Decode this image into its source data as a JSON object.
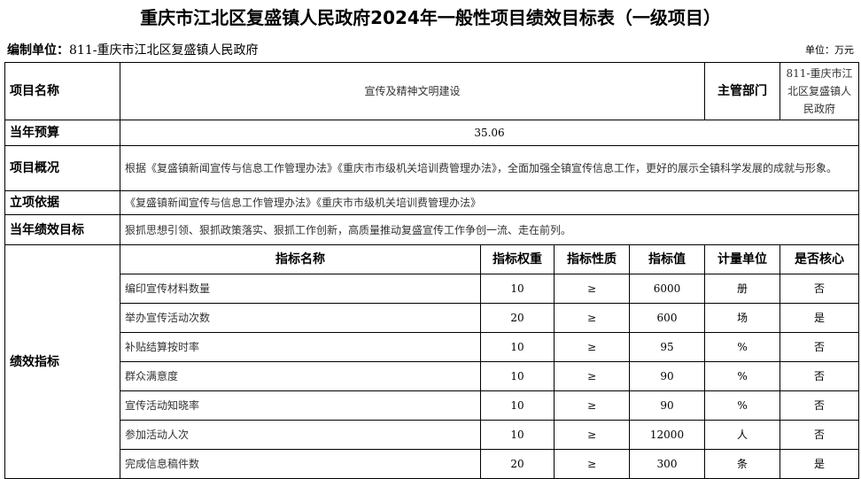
{
  "title": "重庆市江北区复盛镇人民政府2024年一般性项目绩效目标表（一级项目）",
  "org_label": "编制单位：",
  "org_value": "811-重庆市江北区复盛镇人民政府",
  "unit": "单位：万元",
  "rows": {
    "name_label": "项目名称",
    "name_value": "宣传及精神文明建设",
    "dept_label": "主管部门",
    "dept_value": "811-重庆市江北区复盛镇人民政府",
    "budget_label": "当年预算",
    "budget_value": "35.06",
    "overview_label": "项目概况",
    "overview_value": "根据《复盛镇新闻宣传与信息工作管理办法》《重庆市市级机关培训费管理办法》，全面加强全镇宣传信息工作，更好的展示全镇科学发展的成就与形象。",
    "basis_label": "立项依据",
    "basis_value": "《复盛镇新闻宣传与信息工作管理办法》《重庆市市级机关培训费管理办法》",
    "goal_label": "当年绩效目标",
    "goal_value": "狠抓思想引领、狠抓政策落实、狠抓工作创新，高质量推动复盛宣传工作争创一流、走在前列。",
    "indicators_label": "绩效指标"
  },
  "headers": [
    "指标名称",
    "指标权重",
    "指标性质",
    "指标值",
    "计量单位",
    "是否核心"
  ],
  "indicators": [
    [
      "编印宣传材料数量",
      "10",
      "≥",
      "6000",
      "册",
      "否"
    ],
    [
      "举办宣传活动次数",
      "20",
      "≥",
      "600",
      "场",
      "是"
    ],
    [
      "补贴结算按时率",
      "10",
      "≥",
      "95",
      "%",
      "否"
    ],
    [
      "群众满意度",
      "10",
      "≥",
      "90",
      "%",
      "否"
    ],
    [
      "宣传活动知晓率",
      "10",
      "≥",
      "90",
      "%",
      "否"
    ],
    [
      "参加活动人次",
      "10",
      "≥",
      "12000",
      "人",
      "否"
    ],
    [
      "完成信息稿件数",
      "20",
      "≥",
      "300",
      "条",
      "是"
    ]
  ]
}
